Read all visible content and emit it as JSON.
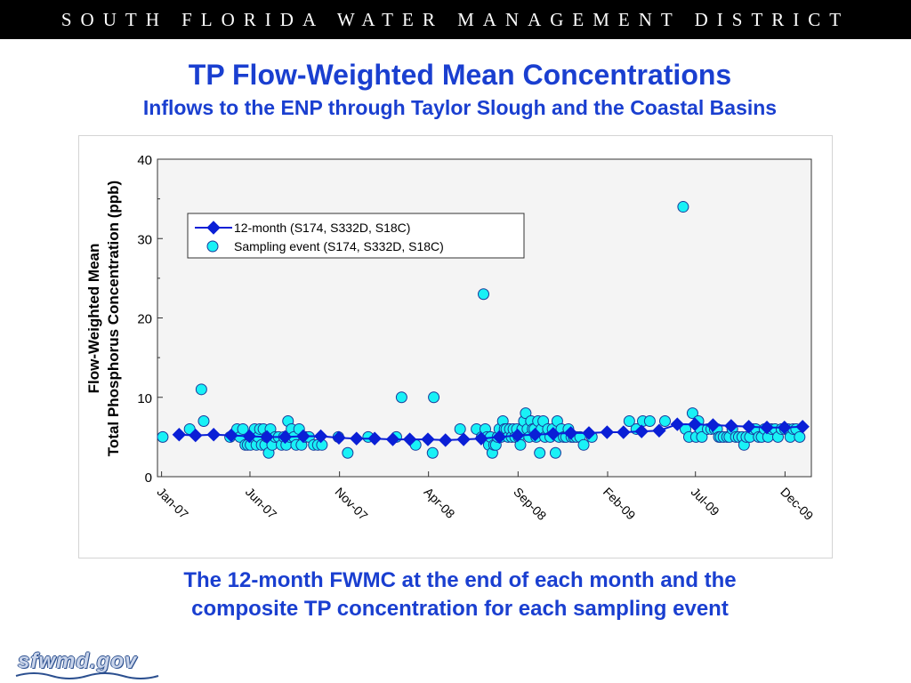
{
  "header": {
    "title": "SOUTH FLORIDA WATER MANAGEMENT DISTRICT"
  },
  "slide": {
    "title": "TP Flow-Weighted Mean Concentrations",
    "subtitle": "Inflows to the ENP  through Taylor Slough and the Coastal Basins",
    "caption_line1": "The 12-month FWMC at the end of each month and the",
    "caption_line2": "composite TP  concentration for each sampling event"
  },
  "logo": {
    "text": "sfwmd.gov"
  },
  "colors": {
    "accent_blue": "#1a3fd0",
    "series_12month": "#0a1fd6",
    "series_sampling": "#19f1f6"
  },
  "chart_data": {
    "type": "scatter",
    "ylabel": "Flow-Weighted Mean Total Phosphorus Concentration (ppb)",
    "ylabel_line1": "Flow-Weighted Mean",
    "ylabel_line2": "Total Phosphorus Concentration (ppb)",
    "xlabel": "",
    "ylim": [
      0,
      40
    ],
    "xlim": [
      "2006-12-25",
      "2010-01-15"
    ],
    "ticks_y": [
      0,
      10,
      20,
      30,
      40
    ],
    "ticks_x": [
      {
        "date": "2007-01-01",
        "label": "Jan-07"
      },
      {
        "date": "2007-06-01",
        "label": "Jun-07"
      },
      {
        "date": "2007-11-01",
        "label": "Nov-07"
      },
      {
        "date": "2008-04-01",
        "label": "Apr-08"
      },
      {
        "date": "2008-09-01",
        "label": "Sep-08"
      },
      {
        "date": "2009-02-01",
        "label": "Feb-09"
      },
      {
        "date": "2009-07-01",
        "label": "Jul-09"
      },
      {
        "date": "2009-12-01",
        "label": "Dec-09"
      }
    ],
    "grid": false,
    "legend_position": "upper-left",
    "series": [
      {
        "name": "12-month (S174, S332D, S18C)",
        "style": "line-diamond",
        "points": [
          [
            "2007-01-31",
            5.3
          ],
          [
            "2007-02-28",
            5.2
          ],
          [
            "2007-03-31",
            5.3
          ],
          [
            "2007-04-30",
            5.2
          ],
          [
            "2007-05-31",
            5.1
          ],
          [
            "2007-06-30",
            5.0
          ],
          [
            "2007-07-31",
            5.0
          ],
          [
            "2007-08-31",
            5.1
          ],
          [
            "2007-09-30",
            5.1
          ],
          [
            "2007-10-31",
            4.9
          ],
          [
            "2007-11-30",
            4.8
          ],
          [
            "2007-12-31",
            4.8
          ],
          [
            "2008-01-31",
            4.7
          ],
          [
            "2008-02-29",
            4.7
          ],
          [
            "2008-03-31",
            4.7
          ],
          [
            "2008-04-30",
            4.6
          ],
          [
            "2008-05-31",
            4.7
          ],
          [
            "2008-06-30",
            4.8
          ],
          [
            "2008-07-31",
            5.0
          ],
          [
            "2008-08-31",
            5.2
          ],
          [
            "2008-09-30",
            5.3
          ],
          [
            "2008-10-31",
            5.4
          ],
          [
            "2008-11-30",
            5.5
          ],
          [
            "2008-12-31",
            5.5
          ],
          [
            "2009-01-31",
            5.6
          ],
          [
            "2009-02-28",
            5.6
          ],
          [
            "2009-03-31",
            5.7
          ],
          [
            "2009-04-30",
            5.8
          ],
          [
            "2009-05-31",
            6.6
          ],
          [
            "2009-06-30",
            6.6
          ],
          [
            "2009-07-31",
            6.5
          ],
          [
            "2009-08-31",
            6.4
          ],
          [
            "2009-09-30",
            6.3
          ],
          [
            "2009-10-31",
            6.2
          ],
          [
            "2009-11-30",
            6.2
          ],
          [
            "2009-12-31",
            6.3
          ]
        ]
      },
      {
        "name": "Sampling event (S174, S332D, S18C)",
        "style": "circle",
        "points": [
          [
            "2007-01-03",
            5.0
          ],
          [
            "2007-02-18",
            6.0
          ],
          [
            "2007-03-10",
            11.0
          ],
          [
            "2007-03-14",
            7.0
          ],
          [
            "2007-04-28",
            5.0
          ],
          [
            "2007-05-10",
            6.0
          ],
          [
            "2007-05-15",
            5.0
          ],
          [
            "2007-05-20",
            6.0
          ],
          [
            "2007-05-24",
            4.0
          ],
          [
            "2007-05-28",
            4.0
          ],
          [
            "2007-06-02",
            4.0
          ],
          [
            "2007-06-06",
            5.0
          ],
          [
            "2007-06-09",
            6.0
          ],
          [
            "2007-06-12",
            4.0
          ],
          [
            "2007-06-15",
            5.0
          ],
          [
            "2007-06-18",
            6.0
          ],
          [
            "2007-06-21",
            4.0
          ],
          [
            "2007-06-24",
            6.0
          ],
          [
            "2007-06-27",
            4.0
          ],
          [
            "2007-06-30",
            5.0
          ],
          [
            "2007-07-03",
            3.0
          ],
          [
            "2007-07-06",
            6.0
          ],
          [
            "2007-07-09",
            4.0
          ],
          [
            "2007-07-14",
            5.0
          ],
          [
            "2007-07-20",
            5.0
          ],
          [
            "2007-07-25",
            4.0
          ],
          [
            "2007-07-29",
            5.0
          ],
          [
            "2007-08-02",
            4.0
          ],
          [
            "2007-08-05",
            7.0
          ],
          [
            "2007-08-08",
            5.0
          ],
          [
            "2007-08-11",
            6.0
          ],
          [
            "2007-08-15",
            5.0
          ],
          [
            "2007-08-19",
            4.0
          ],
          [
            "2007-08-24",
            6.0
          ],
          [
            "2007-08-28",
            4.0
          ],
          [
            "2007-09-04",
            5.0
          ],
          [
            "2007-09-10",
            5.0
          ],
          [
            "2007-09-18",
            4.0
          ],
          [
            "2007-09-25",
            4.0
          ],
          [
            "2007-10-02",
            4.0
          ],
          [
            "2007-10-30",
            5.0
          ],
          [
            "2007-11-15",
            3.0
          ],
          [
            "2007-12-20",
            5.0
          ],
          [
            "2008-02-06",
            5.0
          ],
          [
            "2008-02-15",
            10.0
          ],
          [
            "2008-03-10",
            4.0
          ],
          [
            "2008-04-08",
            3.0
          ],
          [
            "2008-04-10",
            10.0
          ],
          [
            "2008-05-25",
            6.0
          ],
          [
            "2008-06-22",
            6.0
          ],
          [
            "2008-07-01",
            5.0
          ],
          [
            "2008-07-04",
            23.0
          ],
          [
            "2008-07-07",
            6.0
          ],
          [
            "2008-07-10",
            5.0
          ],
          [
            "2008-07-13",
            4.0
          ],
          [
            "2008-07-16",
            5.0
          ],
          [
            "2008-07-19",
            3.0
          ],
          [
            "2008-07-22",
            4.0
          ],
          [
            "2008-07-25",
            4.0
          ],
          [
            "2008-07-28",
            5.0
          ],
          [
            "2008-07-31",
            6.0
          ],
          [
            "2008-08-03",
            5.0
          ],
          [
            "2008-08-06",
            7.0
          ],
          [
            "2008-08-09",
            6.0
          ],
          [
            "2008-08-12",
            6.0
          ],
          [
            "2008-08-15",
            5.0
          ],
          [
            "2008-08-18",
            6.0
          ],
          [
            "2008-08-21",
            5.0
          ],
          [
            "2008-08-24",
            6.0
          ],
          [
            "2008-08-27",
            5.0
          ],
          [
            "2008-08-30",
            6.0
          ],
          [
            "2008-09-02",
            5.0
          ],
          [
            "2008-09-05",
            4.0
          ],
          [
            "2008-09-08",
            6.0
          ],
          [
            "2008-09-11",
            7.0
          ],
          [
            "2008-09-14",
            8.0
          ],
          [
            "2008-09-17",
            6.0
          ],
          [
            "2008-09-20",
            5.0
          ],
          [
            "2008-09-23",
            7.0
          ],
          [
            "2008-09-26",
            6.0
          ],
          [
            "2008-09-29",
            6.0
          ],
          [
            "2008-10-02",
            5.0
          ],
          [
            "2008-10-05",
            7.0
          ],
          [
            "2008-10-08",
            3.0
          ],
          [
            "2008-10-11",
            6.0
          ],
          [
            "2008-10-14",
            7.0
          ],
          [
            "2008-10-17",
            5.0
          ],
          [
            "2008-10-22",
            6.0
          ],
          [
            "2008-10-26",
            5.0
          ],
          [
            "2008-10-30",
            6.0
          ],
          [
            "2008-11-04",
            3.0
          ],
          [
            "2008-11-07",
            7.0
          ],
          [
            "2008-11-10",
            5.0
          ],
          [
            "2008-11-14",
            6.0
          ],
          [
            "2008-11-18",
            5.0
          ],
          [
            "2008-11-22",
            5.0
          ],
          [
            "2008-11-26",
            6.0
          ],
          [
            "2008-12-01",
            5.0
          ],
          [
            "2008-12-05",
            5.0
          ],
          [
            "2008-12-10",
            5.0
          ],
          [
            "2008-12-16",
            5.0
          ],
          [
            "2008-12-22",
            4.0
          ],
          [
            "2009-01-05",
            5.0
          ],
          [
            "2009-03-10",
            7.0
          ],
          [
            "2009-03-22",
            6.0
          ],
          [
            "2009-04-02",
            7.0
          ],
          [
            "2009-04-14",
            7.0
          ],
          [
            "2009-05-10",
            7.0
          ],
          [
            "2009-06-10",
            34.0
          ],
          [
            "2009-06-14",
            6.0
          ],
          [
            "2009-06-20",
            5.0
          ],
          [
            "2009-06-26",
            8.0
          ],
          [
            "2009-07-02",
            5.0
          ],
          [
            "2009-07-06",
            7.0
          ],
          [
            "2009-07-09",
            6.0
          ],
          [
            "2009-07-12",
            5.0
          ],
          [
            "2009-07-22",
            6.0
          ],
          [
            "2009-07-28",
            6.0
          ],
          [
            "2009-08-03",
            6.0
          ],
          [
            "2009-08-07",
            6.0
          ],
          [
            "2009-08-10",
            5.0
          ],
          [
            "2009-08-13",
            5.0
          ],
          [
            "2009-08-18",
            5.0
          ],
          [
            "2009-08-24",
            5.0
          ],
          [
            "2009-08-28",
            5.0
          ],
          [
            "2009-09-02",
            6.0
          ],
          [
            "2009-09-08",
            5.0
          ],
          [
            "2009-09-13",
            5.0
          ],
          [
            "2009-09-19",
            5.0
          ],
          [
            "2009-09-22",
            4.0
          ],
          [
            "2009-09-26",
            5.0
          ],
          [
            "2009-10-02",
            5.0
          ],
          [
            "2009-10-07",
            6.0
          ],
          [
            "2009-10-12",
            6.0
          ],
          [
            "2009-10-17",
            5.0
          ],
          [
            "2009-10-22",
            5.0
          ],
          [
            "2009-10-27",
            6.0
          ],
          [
            "2009-11-02",
            5.0
          ],
          [
            "2009-11-08",
            6.0
          ],
          [
            "2009-11-14",
            6.0
          ],
          [
            "2009-11-19",
            5.0
          ],
          [
            "2009-11-25",
            6.0
          ],
          [
            "2009-12-01",
            6.0
          ],
          [
            "2009-12-06",
            6.0
          ],
          [
            "2009-12-10",
            5.0
          ],
          [
            "2009-12-15",
            6.0
          ],
          [
            "2009-12-20",
            6.0
          ],
          [
            "2009-12-26",
            5.0
          ]
        ]
      }
    ]
  }
}
